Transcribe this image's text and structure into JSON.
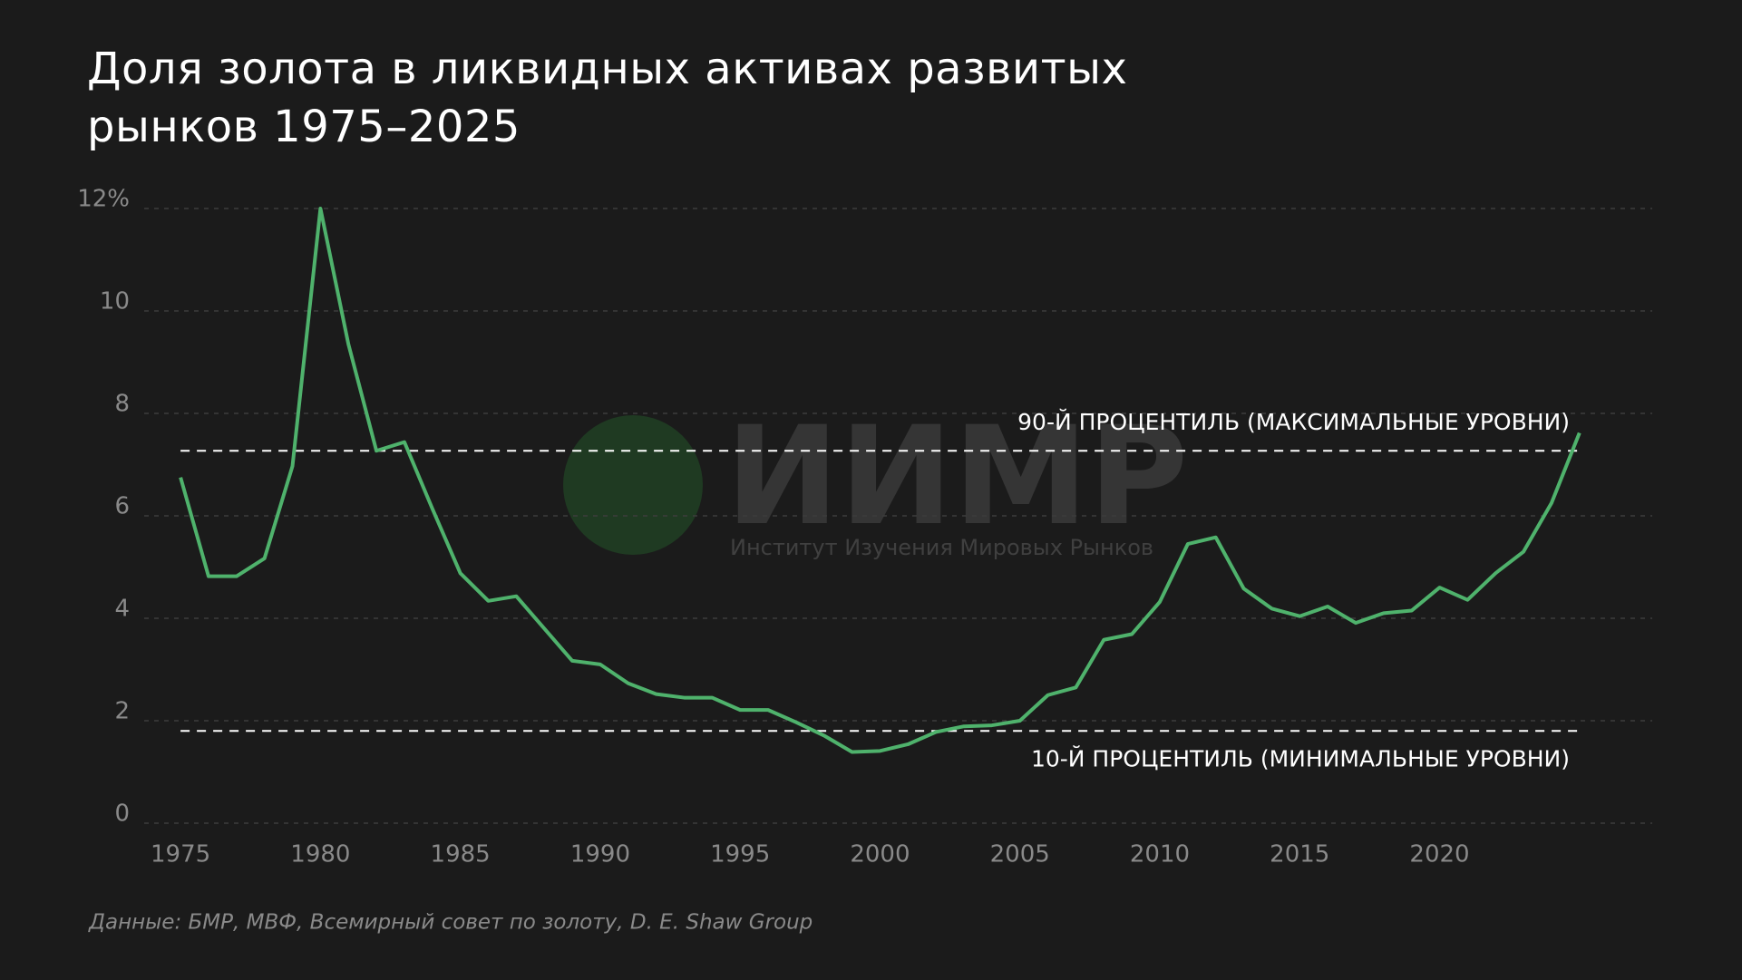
{
  "chart_data": {
    "type": "line",
    "title": "Доля золота в ликвидных активах развитых рынков 1975–2025",
    "source": "Данные: БМР, МВФ, Всемирный совет по золоту, D. E. Shaw Group",
    "watermark": {
      "logo": "ИИМР",
      "name": "Институт Изучения Мировых Рынков"
    },
    "x": [
      1975,
      1976,
      1977,
      1978,
      1979,
      1980,
      1981,
      1982,
      1983,
      1984,
      1985,
      1986,
      1987,
      1988,
      1989,
      1990,
      1991,
      1992,
      1993,
      1994,
      1995,
      1996,
      1997,
      1998,
      1999,
      2000,
      2001,
      2002,
      2003,
      2004,
      2005,
      2006,
      2007,
      2008,
      2009,
      2010,
      2011,
      2012,
      2013,
      2014,
      2015,
      2016,
      2017,
      2018,
      2019,
      2020,
      2021,
      2022,
      2023,
      2024,
      2025
    ],
    "series": [
      {
        "color": "#4fb26c",
        "values": [
          6.75,
          4.82,
          4.82,
          5.17,
          6.97,
          12.0,
          9.35,
          7.27,
          7.44,
          6.14,
          4.88,
          4.34,
          4.43,
          3.8,
          3.17,
          3.1,
          2.73,
          2.52,
          2.45,
          2.45,
          2.21,
          2.21,
          1.97,
          1.71,
          1.39,
          1.41,
          1.54,
          1.78,
          1.89,
          1.91,
          2.0,
          2.5,
          2.65,
          3.58,
          3.69,
          4.32,
          5.45,
          5.58,
          4.58,
          4.19,
          4.04,
          4.23,
          3.91,
          4.1,
          4.15,
          4.6,
          4.36,
          4.88,
          5.3,
          6.25,
          7.62
        ]
      }
    ],
    "reference_lines": [
      {
        "value": 7.27,
        "label": "90-Й ПРОЦЕНТИЛЬ (МАКСИМАЛЬНЫЕ УРОВНИ)",
        "color": "#ffffff"
      },
      {
        "value": 1.8,
        "label": "10-Й ПРОЦЕНТИЛЬ (МИНИМАЛЬНЫЕ УРОВНИ)",
        "color": "#ffffff"
      }
    ],
    "xlim": [
      1973.7,
      2027.6
    ],
    "xticks": [
      1975,
      1980,
      1985,
      1990,
      1995,
      2000,
      2005,
      2010,
      2015,
      2020
    ],
    "ylim": [
      0,
      12
    ],
    "yticks": [
      0,
      2,
      4,
      6,
      8,
      10,
      {
        "value": 12,
        "label": "12%"
      }
    ],
    "grid": true
  }
}
